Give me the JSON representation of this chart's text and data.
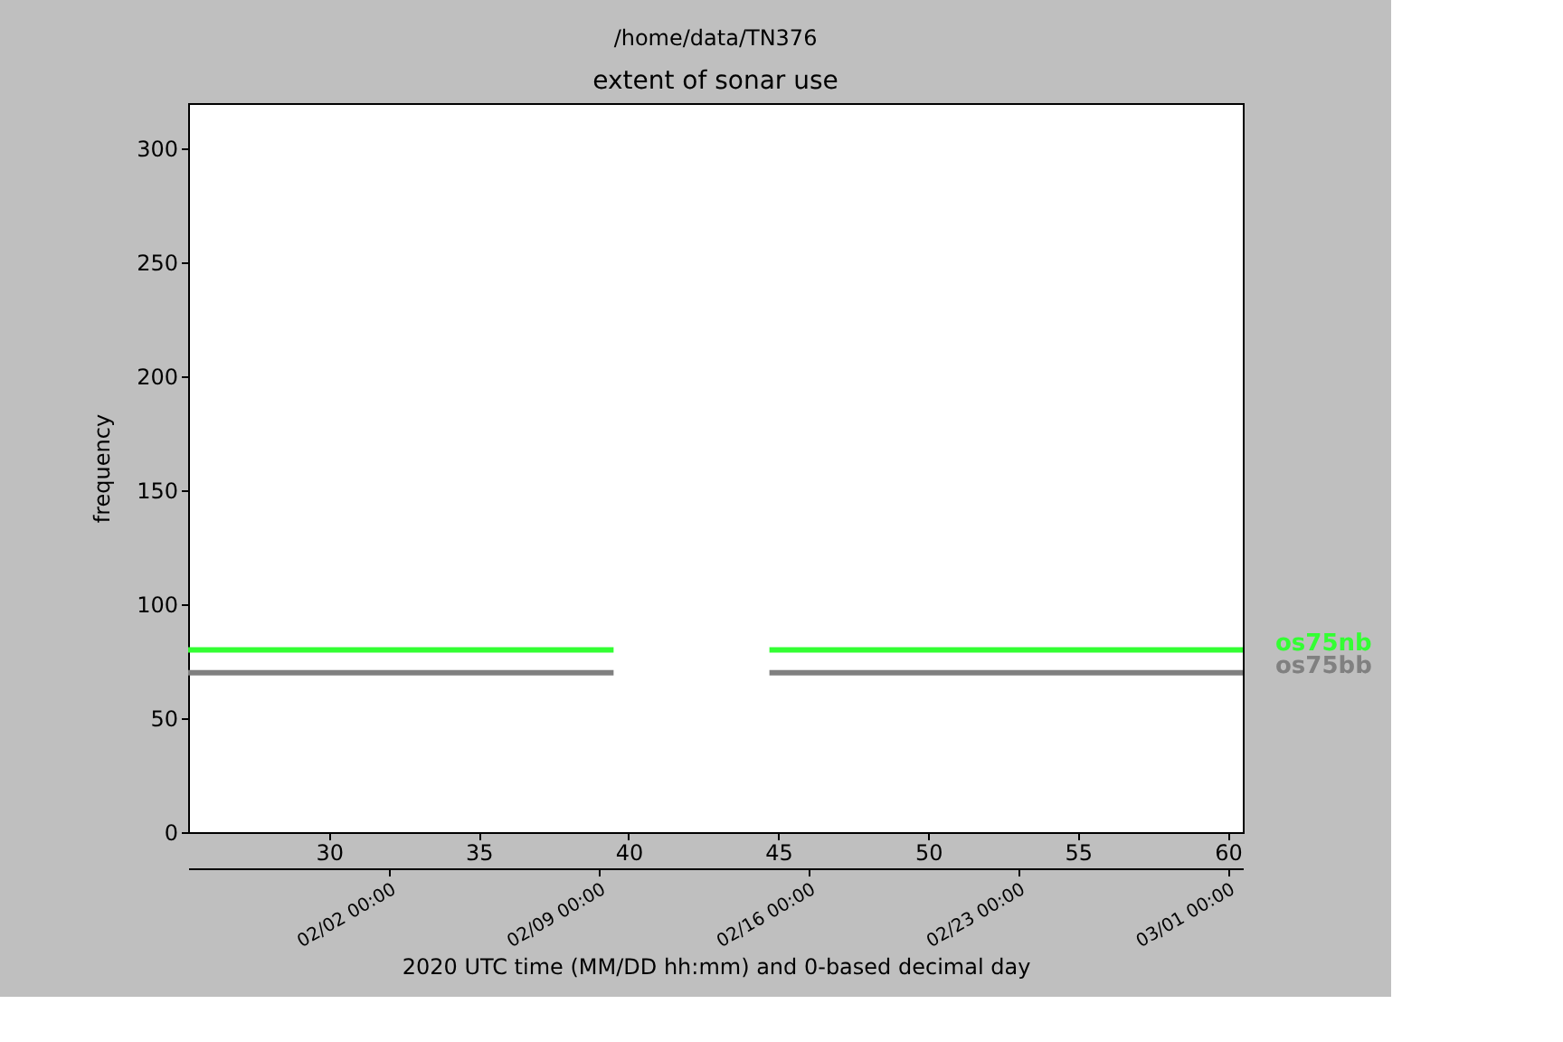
{
  "chart_data": {
    "type": "line",
    "title": "/home/data/TN376",
    "subtitle": "extent of sonar use",
    "ylabel": "frequency",
    "x2label": "2020 UTC time (MM/DD hh:mm) and 0-based decimal day",
    "series": [
      {
        "name": "os75nb",
        "color": "#33ff33",
        "x": [
          25.3,
          39.5,
          42,
          44.7,
          60.5
        ],
        "values": [
          80,
          80,
          null,
          80,
          80
        ]
      },
      {
        "name": "os75bb",
        "color": "#808080",
        "x": [
          25.3,
          39.5,
          42,
          44.7,
          60.5
        ],
        "values": [
          70,
          70,
          null,
          70,
          70
        ]
      }
    ],
    "xlim": [
      25.3,
      60.5
    ],
    "xticks": [
      30,
      35,
      40,
      45,
      50,
      55,
      60
    ],
    "x2lim": [
      "2020-01-26T07:12",
      "2020-03-01T12:00"
    ],
    "x2ticks": [
      {
        "value": "2020-02-02",
        "label": "02/02 00:00"
      },
      {
        "value": "2020-02-09",
        "label": "02/09 00:00"
      },
      {
        "value": "2020-02-16",
        "label": "02/16 00:00"
      },
      {
        "value": "2020-02-23",
        "label": "02/23 00:00"
      },
      {
        "value": "2020-03-01",
        "label": "03/01 00:00"
      }
    ],
    "ylim": [
      0,
      320
    ],
    "yticks": [
      0,
      50,
      100,
      150,
      200,
      250,
      300
    ],
    "grid": false,
    "legend": false,
    "marker": "none",
    "line_style": "solid"
  }
}
